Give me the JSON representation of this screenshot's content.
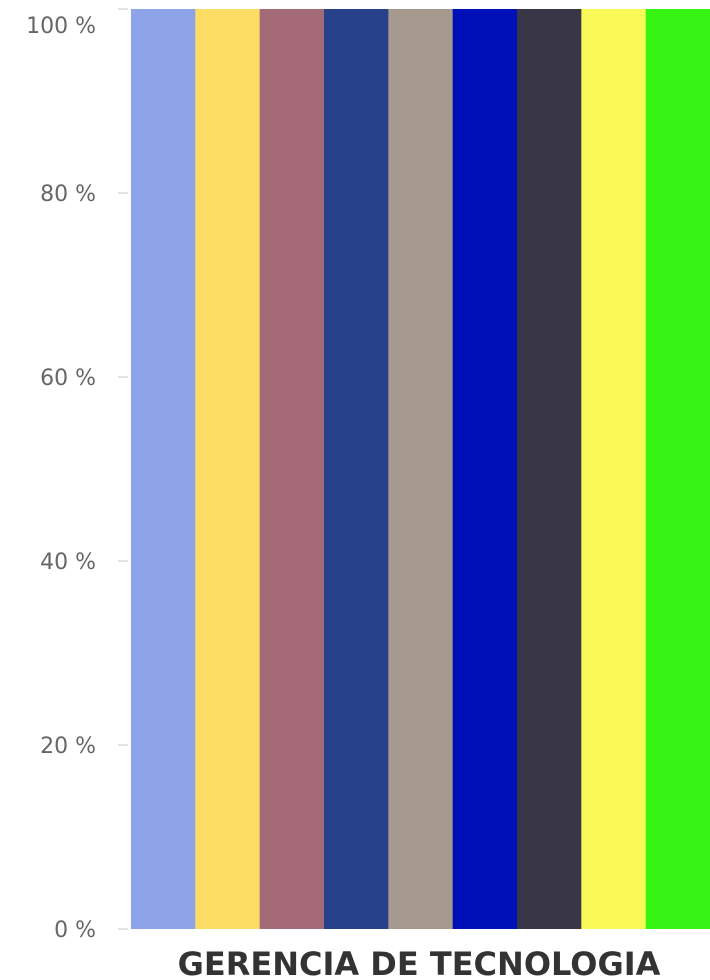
{
  "chart_data": {
    "type": "bar",
    "stacked": true,
    "normalized": true,
    "categories": [
      "GERENCIA DE TECNOLOGIA"
    ],
    "series": [
      {
        "values": [
          11.11
        ],
        "color": "#8ea4e8"
      },
      {
        "values": [
          11.11
        ],
        "color": "#fddd64"
      },
      {
        "values": [
          11.11
        ],
        "color": "#a56a78"
      },
      {
        "values": [
          11.11
        ],
        "color": "#27428b"
      },
      {
        "values": [
          11.11
        ],
        "color": "#a59a8d"
      },
      {
        "values": [
          11.11
        ],
        "color": "#0010b8"
      },
      {
        "values": [
          11.11
        ],
        "color": "#393747"
      },
      {
        "values": [
          11.11
        ],
        "color": "#f9fa58"
      },
      {
        "values": [
          11.11
        ],
        "color": "#36f515"
      }
    ],
    "y_ticks": [
      "0 %",
      "20 %",
      "40 %",
      "60 %",
      "80 %",
      "100 %"
    ],
    "y_tick_values": [
      0,
      20,
      40,
      60,
      80,
      100
    ],
    "ylim": [
      0,
      100
    ],
    "grid": false,
    "legend": "none"
  }
}
